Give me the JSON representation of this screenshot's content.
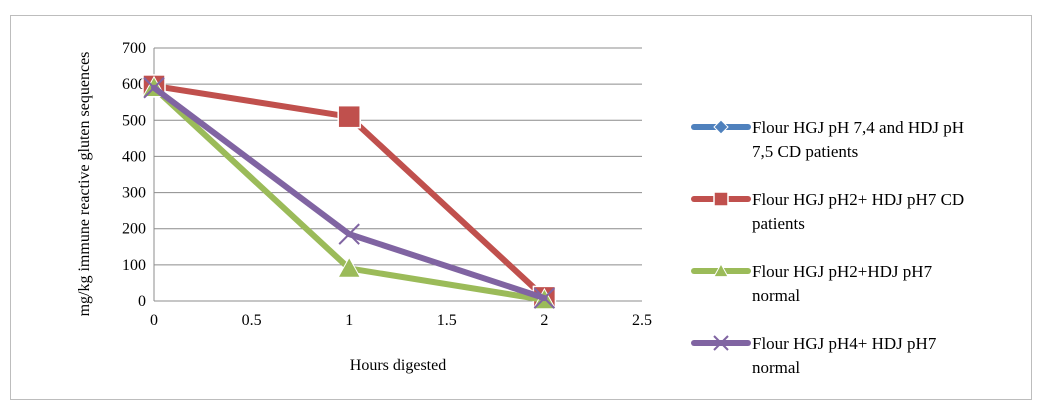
{
  "chart_data": {
    "type": "line",
    "title": "",
    "xlabel": "Hours digested",
    "ylabel": "mg/kg immune reactive gluten sequences",
    "xlim": [
      0,
      2.5
    ],
    "ylim": [
      0,
      700
    ],
    "xticks": [
      0,
      0.5,
      1,
      1.5,
      2,
      2.5
    ],
    "xtick_labels": [
      "0",
      "0.5",
      "1",
      "1.5",
      "2",
      "2.5"
    ],
    "yticks": [
      0,
      100,
      200,
      300,
      400,
      500,
      600,
      700
    ],
    "ytick_labels": [
      "0",
      "100",
      "200",
      "300",
      "400",
      "500",
      "600",
      "700"
    ],
    "grid": "horizontal",
    "legend_position": "right",
    "x": [
      0,
      1,
      2
    ],
    "series": [
      {
        "name": "Flour HGJ pH 7,4 and HDJ pH 7,5 CD patients",
        "legend_lines": [
          "Flour HGJ pH 7,4 and HDJ pH",
          "7,5 CD patients"
        ],
        "values": [
          600,
          505,
          10
        ],
        "color": "#4f81bd",
        "marker": "diamond"
      },
      {
        "name": "Flour HGJ pH2+ HDJ pH7 CD patients",
        "legend_lines": [
          "Flour HGJ pH2+ HDJ pH7 CD",
          "patients"
        ],
        "values": [
          595,
          510,
          10
        ],
        "color": "#c0504d",
        "marker": "square"
      },
      {
        "name": "Flour HGJ pH2+HDJ pH7 normal",
        "legend_lines": [
          "Flour HGJ pH2+HDJ pH7",
          "normal"
        ],
        "values": [
          590,
          90,
          3
        ],
        "color": "#9bbb59",
        "marker": "triangle"
      },
      {
        "name": "Flour HGJ pH4+ HDJ pH7 normal",
        "legend_lines": [
          "Flour HGJ pH4+ HDJ pH7",
          "normal"
        ],
        "values": [
          590,
          185,
          8
        ],
        "color": "#8064a2",
        "marker": "x"
      }
    ]
  }
}
